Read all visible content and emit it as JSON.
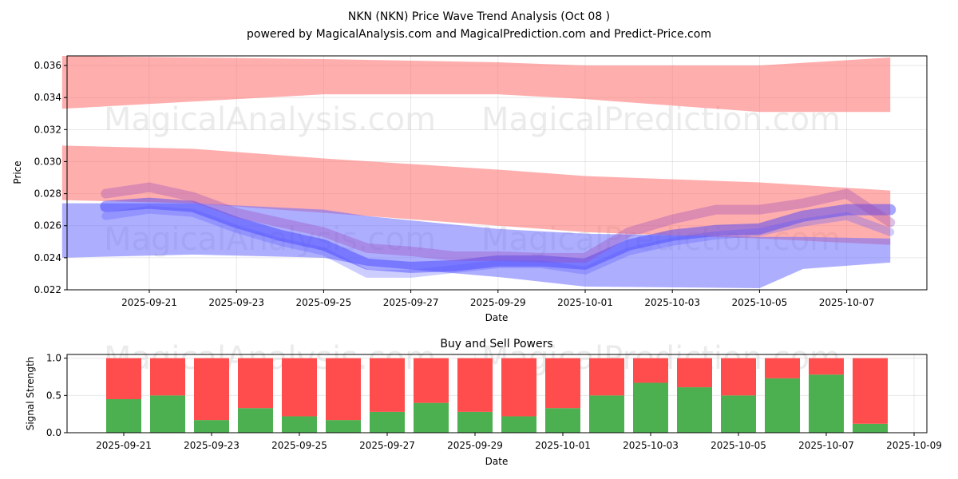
{
  "title": "NKN (NKN) Price Wave Trend Analysis (Oct 08 )",
  "subtitle": "powered by MagicalAnalysis.com and MagicalPrediction.com and Predict-Price.com",
  "watermarks": [
    "MagicalAnalysis.com",
    "MagicalPrediction.com"
  ],
  "colors": {
    "red_band": "#ff6b6b",
    "blue_band": "#6b6bff",
    "buy": "#4caf50",
    "sell": "#ff4c4c"
  },
  "chart_data": [
    {
      "type": "area",
      "xlabel": "Date",
      "ylabel": "Price",
      "ylim": [
        0.022,
        0.0366
      ],
      "y_ticks": [
        "0.022",
        "0.024",
        "0.026",
        "0.028",
        "0.030",
        "0.032",
        "0.034",
        "0.036"
      ],
      "x_ticks": [
        "2025-09-21",
        "2025-09-23",
        "2025-09-25",
        "2025-09-27",
        "2025-09-29",
        "2025-10-01",
        "2025-10-03",
        "2025-10-05",
        "2025-10-07"
      ],
      "grid": true,
      "bands": [
        {
          "color": "red",
          "x": [
            "2025-09-19",
            "2025-09-25",
            "2025-09-29",
            "2025-10-01",
            "2025-10-05",
            "2025-10-08"
          ],
          "upper": [
            0.0366,
            0.0364,
            0.0362,
            0.036,
            0.036,
            0.0365
          ],
          "lower": [
            0.0333,
            0.0342,
            0.0342,
            0.0339,
            0.0331,
            0.0331
          ]
        },
        {
          "color": "red",
          "x": [
            "2025-09-19",
            "2025-09-22",
            "2025-09-25",
            "2025-09-29",
            "2025-10-01",
            "2025-10-05",
            "2025-10-08"
          ],
          "upper": [
            0.031,
            0.0308,
            0.0302,
            0.0295,
            0.0291,
            0.0287,
            0.0282
          ],
          "lower": [
            0.0276,
            0.0274,
            0.0268,
            0.026,
            0.0256,
            0.0252,
            0.0248
          ]
        },
        {
          "color": "blue",
          "x": [
            "2025-09-19",
            "2025-09-22",
            "2025-09-25",
            "2025-09-26",
            "2025-09-29",
            "2025-10-01",
            "2025-10-05",
            "2025-10-06",
            "2025-10-08"
          ],
          "upper": [
            0.0274,
            0.0274,
            0.027,
            0.0266,
            0.0258,
            0.0255,
            0.0253,
            0.0253,
            0.0252
          ],
          "lower": [
            0.024,
            0.0242,
            0.024,
            0.0235,
            0.0228,
            0.0222,
            0.0221,
            0.0233,
            0.0237
          ]
        }
      ],
      "waves": [
        {
          "x": [
            "2025-09-20",
            "2025-09-21",
            "2025-09-22",
            "2025-09-23",
            "2025-09-24",
            "2025-09-25",
            "2025-09-26",
            "2025-09-27",
            "2025-09-28",
            "2025-09-29",
            "2025-09-30",
            "2025-10-01",
            "2025-10-02",
            "2025-10-03",
            "2025-10-04",
            "2025-10-05",
            "2025-10-06",
            "2025-10-07",
            "2025-10-08"
          ],
          "y": [
            0.0272,
            0.0274,
            0.0272,
            0.0262,
            0.0254,
            0.0248,
            0.0236,
            0.0234,
            0.0235,
            0.0238,
            0.0238,
            0.0236,
            0.0248,
            0.0254,
            0.0257,
            0.0258,
            0.0266,
            0.027,
            0.027
          ]
        },
        {
          "x": [
            "2025-09-20",
            "2025-09-21",
            "2025-09-22",
            "2025-09-23",
            "2025-09-24",
            "2025-09-25",
            "2025-09-26",
            "2025-09-27",
            "2025-09-28",
            "2025-09-29",
            "2025-09-30",
            "2025-10-01",
            "2025-10-02",
            "2025-10-03",
            "2025-10-04",
            "2025-10-05",
            "2025-10-06",
            "2025-10-07",
            "2025-10-08"
          ],
          "y": [
            0.028,
            0.0284,
            0.0278,
            0.0268,
            0.0262,
            0.0256,
            0.0246,
            0.0244,
            0.0241,
            0.0241,
            0.024,
            0.024,
            0.0256,
            0.0264,
            0.027,
            0.027,
            0.0274,
            0.028,
            0.0262
          ]
        },
        {
          "x": [
            "2025-09-20",
            "2025-09-21",
            "2025-09-22",
            "2025-09-23",
            "2025-09-24",
            "2025-09-25",
            "2025-09-26",
            "2025-09-27",
            "2025-09-28",
            "2025-09-29",
            "2025-09-30",
            "2025-10-01",
            "2025-10-02",
            "2025-10-03",
            "2025-10-04",
            "2025-10-05",
            "2025-10-06",
            "2025-10-07",
            "2025-10-08"
          ],
          "y": [
            0.0266,
            0.027,
            0.0268,
            0.0258,
            0.025,
            0.0244,
            0.023,
            0.023,
            0.0233,
            0.0236,
            0.0236,
            0.0232,
            0.0244,
            0.025,
            0.0254,
            0.0256,
            0.0262,
            0.0266,
            0.0256
          ]
        }
      ]
    },
    {
      "type": "bar",
      "title": "Buy and Sell Powers",
      "xlabel": "Date",
      "ylabel": "Signal Strength",
      "ylim": [
        0,
        1.05
      ],
      "y_ticks": [
        "0.0",
        "0.5",
        "1.0"
      ],
      "x_ticks": [
        "2025-09-21",
        "2025-09-23",
        "2025-09-25",
        "2025-09-27",
        "2025-09-29",
        "2025-10-01",
        "2025-10-03",
        "2025-10-05",
        "2025-10-07",
        "2025-10-09"
      ],
      "categories": [
        "2025-09-21",
        "2025-09-22",
        "2025-09-23",
        "2025-09-24",
        "2025-09-25",
        "2025-09-26",
        "2025-09-27",
        "2025-09-28",
        "2025-09-29",
        "2025-09-30",
        "2025-10-01",
        "2025-10-02",
        "2025-10-03",
        "2025-10-04",
        "2025-10-05",
        "2025-10-06",
        "2025-10-07",
        "2025-10-08"
      ],
      "series": [
        {
          "values": [
            0.45,
            0.5,
            0.17,
            0.33,
            0.22,
            0.17,
            0.28,
            0.4,
            0.28,
            0.22,
            0.33,
            0.5,
            0.67,
            0.61,
            0.5,
            0.73,
            0.78,
            0.12
          ]
        },
        {
          "values": [
            0.55,
            0.5,
            0.83,
            0.67,
            0.78,
            0.83,
            0.72,
            0.6,
            0.72,
            0.78,
            0.67,
            0.5,
            0.33,
            0.39,
            0.5,
            0.27,
            0.22,
            0.88
          ]
        }
      ],
      "grid": true
    }
  ]
}
